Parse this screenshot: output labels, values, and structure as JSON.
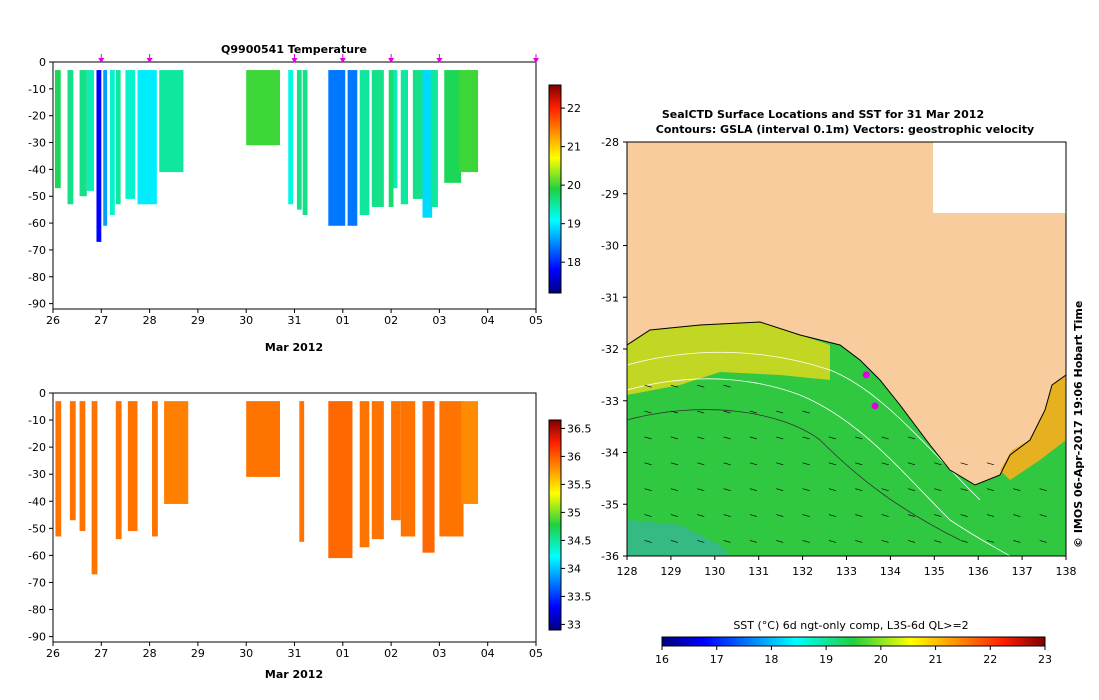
{
  "chart_data": [
    {
      "type": "heatmap",
      "title": "Q9900541  Temperature",
      "xlabel": "Mar 2012",
      "x_ticks": [
        "26",
        "27",
        "28",
        "29",
        "30",
        "31",
        "01",
        "02",
        "03",
        "04",
        "05"
      ],
      "y_ticks": [
        "0",
        "-10",
        "-20",
        "-30",
        "-40",
        "-50",
        "-60",
        "-70",
        "-80",
        "-90"
      ],
      "ylim": [
        -92,
        0
      ],
      "colorbar": {
        "ticks": [
          "18",
          "19",
          "20",
          "21",
          "22"
        ],
        "min": 17.2,
        "max": 22.6
      },
      "profile_markers_days": [
        1,
        2,
        5,
        6,
        7,
        8,
        10
      ],
      "profiles": [
        {
          "day": 0.04,
          "w": 0.12,
          "depth": 47,
          "value": 19.8
        },
        {
          "day": 0.3,
          "w": 0.12,
          "depth": 53,
          "value": 19.6
        },
        {
          "day": 0.55,
          "w": 0.15,
          "depth": 50,
          "value": 19.6
        },
        {
          "day": 0.7,
          "w": 0.15,
          "depth": 48,
          "value": 19.4
        },
        {
          "day": 0.9,
          "w": 0.1,
          "depth": 67,
          "value": 17.8
        },
        {
          "day": 1.04,
          "w": 0.08,
          "depth": 61,
          "value": 18.6
        },
        {
          "day": 1.18,
          "w": 0.1,
          "depth": 57,
          "value": 19.3
        },
        {
          "day": 1.3,
          "w": 0.1,
          "depth": 53,
          "value": 19.5
        },
        {
          "day": 1.5,
          "w": 0.2,
          "depth": 51,
          "value": 19.3
        },
        {
          "day": 1.75,
          "w": 0.4,
          "depth": 53,
          "value": 19.0
        },
        {
          "day": 2.2,
          "w": 0.5,
          "depth": 41,
          "value": 19.5
        },
        {
          "day": 4.0,
          "w": 0.7,
          "depth": 31,
          "value": 20.0
        },
        {
          "day": 4.87,
          "w": 0.1,
          "depth": 53,
          "value": 19.2
        },
        {
          "day": 5.05,
          "w": 0.1,
          "depth": 55,
          "value": 19.6
        },
        {
          "day": 5.17,
          "w": 0.1,
          "depth": 57,
          "value": 19.6
        },
        {
          "day": 5.7,
          "w": 0.35,
          "depth": 61,
          "value": 18.4
        },
        {
          "day": 6.1,
          "w": 0.2,
          "depth": 61,
          "value": 18.4
        },
        {
          "day": 6.35,
          "w": 0.2,
          "depth": 57,
          "value": 19.5
        },
        {
          "day": 6.6,
          "w": 0.25,
          "depth": 54,
          "value": 19.6
        },
        {
          "day": 6.95,
          "w": 0.1,
          "depth": 54,
          "value": 19.7
        },
        {
          "day": 7.05,
          "w": 0.08,
          "depth": 47,
          "value": 19.4
        },
        {
          "day": 7.2,
          "w": 0.15,
          "depth": 53,
          "value": 19.5
        },
        {
          "day": 7.45,
          "w": 0.2,
          "depth": 51,
          "value": 19.6
        },
        {
          "day": 7.65,
          "w": 0.2,
          "depth": 58,
          "value": 18.9
        },
        {
          "day": 7.82,
          "w": 0.15,
          "depth": 54,
          "value": 19.5
        },
        {
          "day": 8.1,
          "w": 0.35,
          "depth": 45,
          "value": 19.8
        },
        {
          "day": 8.4,
          "w": 0.4,
          "depth": 41,
          "value": 20.0
        }
      ]
    },
    {
      "type": "heatmap",
      "title": "",
      "xlabel": "Mar 2012",
      "x_ticks": [
        "26",
        "27",
        "28",
        "29",
        "30",
        "31",
        "01",
        "02",
        "03",
        "04",
        "05"
      ],
      "y_ticks": [
        "0",
        "-10",
        "-20",
        "-30",
        "-40",
        "-50",
        "-60",
        "-70",
        "-80",
        "-90"
      ],
      "ylim": [
        -92,
        0
      ],
      "colorbar": {
        "ticks": [
          "33",
          "33.5",
          "34",
          "34.5",
          "35",
          "35.5",
          "36",
          "36.5"
        ],
        "min": 32.9,
        "max": 36.65
      },
      "profiles": [
        {
          "day": 0.05,
          "w": 0.12,
          "depth": 53,
          "value": 35.9
        },
        {
          "day": 0.35,
          "w": 0.12,
          "depth": 47,
          "value": 35.9
        },
        {
          "day": 0.55,
          "w": 0.12,
          "depth": 51,
          "value": 35.9
        },
        {
          "day": 0.8,
          "w": 0.12,
          "depth": 67,
          "value": 35.9
        },
        {
          "day": 1.3,
          "w": 0.12,
          "depth": 54,
          "value": 35.9
        },
        {
          "day": 1.55,
          "w": 0.2,
          "depth": 51,
          "value": 35.9
        },
        {
          "day": 2.05,
          "w": 0.12,
          "depth": 53,
          "value": 35.9
        },
        {
          "day": 2.3,
          "w": 0.5,
          "depth": 41,
          "value": 35.85
        },
        {
          "day": 4.0,
          "w": 0.7,
          "depth": 31,
          "value": 35.9
        },
        {
          "day": 5.1,
          "w": 0.1,
          "depth": 55,
          "value": 35.9
        },
        {
          "day": 5.7,
          "w": 0.5,
          "depth": 61,
          "value": 35.95
        },
        {
          "day": 6.35,
          "w": 0.2,
          "depth": 57,
          "value": 35.9
        },
        {
          "day": 6.6,
          "w": 0.25,
          "depth": 54,
          "value": 35.9
        },
        {
          "day": 7.0,
          "w": 0.2,
          "depth": 47,
          "value": 35.9
        },
        {
          "day": 7.2,
          "w": 0.3,
          "depth": 53,
          "value": 35.9
        },
        {
          "day": 7.65,
          "w": 0.25,
          "depth": 59,
          "value": 35.95
        },
        {
          "day": 8.0,
          "w": 0.5,
          "depth": 53,
          "value": 35.9
        },
        {
          "day": 8.45,
          "w": 0.35,
          "depth": 41,
          "value": 35.8
        }
      ]
    },
    {
      "type": "heatmap",
      "title": "SealCTD Surface Locations and SST for 31 Mar 2012",
      "subtitle": "Contours: GSLA (interval 0.1m) Vectors: geostrophic velocity",
      "x_ticks": [
        "128",
        "129",
        "130",
        "131",
        "132",
        "133",
        "134",
        "135",
        "136",
        "137",
        "138"
      ],
      "y_ticks": [
        "-28",
        "-29",
        "-30",
        "-31",
        "-32",
        "-33",
        "-34",
        "-35",
        "-36"
      ],
      "xlim": [
        128,
        138
      ],
      "ylim": [
        -36,
        -28
      ],
      "colorbar_label": "SST (°C) 6d ngt-only comp, L3S-6d QL>=2",
      "colorbar_ticks": [
        "16",
        "17",
        "18",
        "19",
        "20",
        "21",
        "22",
        "23"
      ],
      "credit": "© IMOS 06-Apr-2017 19:06 Hobart Time",
      "seal_locations": [
        [
          133.45,
          -32.5
        ],
        [
          133.65,
          -33.1
        ]
      ]
    }
  ],
  "colors": {
    "land": "#f8cc9c",
    "marker": "#e000e0",
    "jet": [
      "#00007f",
      "#0000ff",
      "#007fff",
      "#00ffff",
      "#7fff7f",
      "#ffff00",
      "#ff7f00",
      "#ff0000",
      "#7f0000"
    ],
    "salinity_fill": "#ee8c10"
  }
}
